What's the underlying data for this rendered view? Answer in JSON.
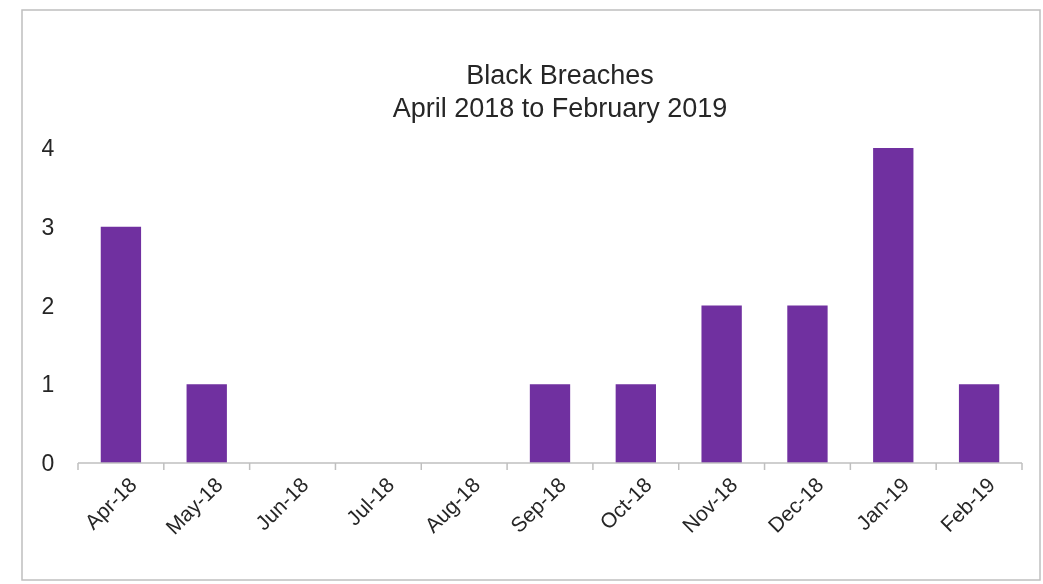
{
  "chart_data": {
    "type": "bar",
    "title": "Black Breaches",
    "subtitle": "April 2018 to February 2019",
    "categories": [
      "Apr-18",
      "May-18",
      "Jun-18",
      "Jul-18",
      "Aug-18",
      "Sep-18",
      "Oct-18",
      "Nov-18",
      "Dec-18",
      "Jan-19",
      "Feb-19"
    ],
    "values": [
      3,
      1,
      0,
      0,
      0,
      1,
      1,
      2,
      2,
      4,
      1
    ],
    "color": "#7030a0",
    "ylim": [
      0,
      4
    ],
    "yticks": [
      0,
      1,
      2,
      3,
      4
    ]
  }
}
